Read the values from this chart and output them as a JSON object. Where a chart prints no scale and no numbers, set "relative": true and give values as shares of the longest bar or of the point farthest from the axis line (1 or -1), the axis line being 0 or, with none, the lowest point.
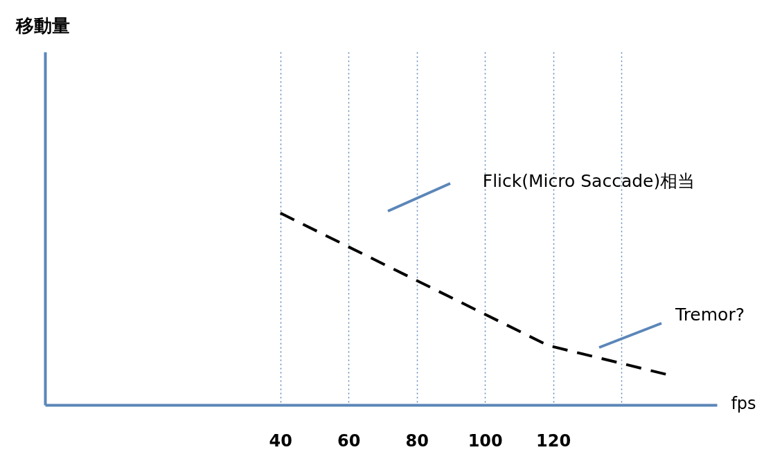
{
  "chart_data": {
    "type": "line",
    "xlabel": "fps",
    "relative": true,
    "x": [
      40,
      118.5,
      153
    ],
    "series": [
      {
        "color": "#000000",
        "values": [
          1,
          0.31,
          0.16
        ]
      }
    ],
    "xlim": [
      -29,
      168
    ],
    "xticks": [
      40,
      60,
      80,
      100,
      120,
      {
        "value": 140,
        "label": null
      }
    ],
    "grid": "x",
    "marker": "none",
    "line_style": "dashed",
    "tick_labels": "x",
    "annotations": [
      "Flick(Micro Saccade)相当",
      "Tremor?",
      "移動量"
    ]
  }
}
